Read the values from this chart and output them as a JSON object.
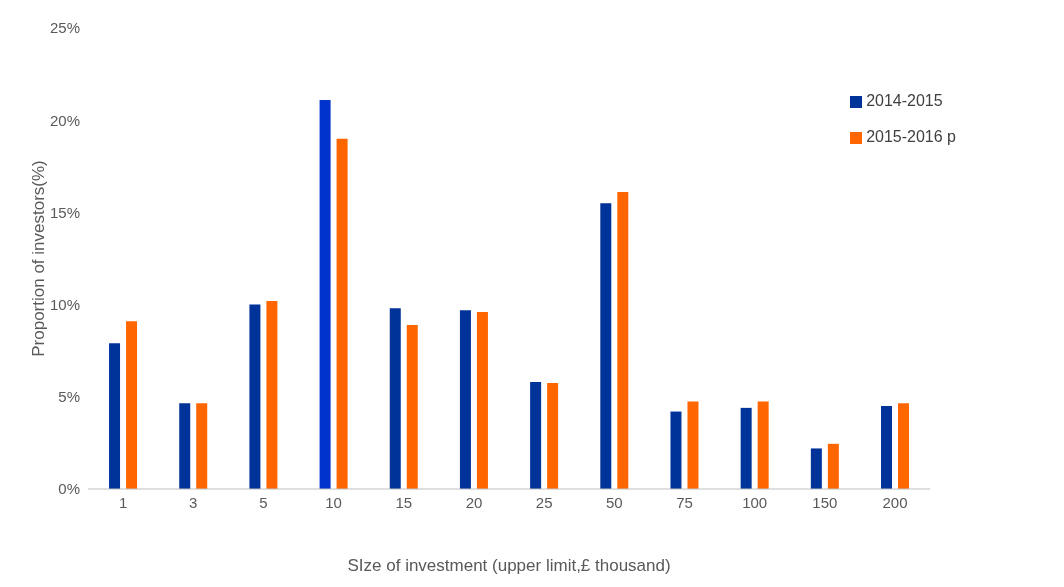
{
  "chart_data": {
    "type": "bar",
    "xlabel": "SIze of investment (upper limit,£ thousand)",
    "ylabel": "Proportion of investors(%)",
    "categories": [
      "1",
      "3",
      "5",
      "10",
      "15",
      "20",
      "25",
      "50",
      "75",
      "100",
      "150",
      "200"
    ],
    "series": [
      {
        "name": "2014-2015",
        "color": "#003399",
        "colors": [
          "#003399",
          "#003399",
          "#003399",
          "#0033cc",
          "#003399",
          "#003399",
          "#003399",
          "#003399",
          "#003399",
          "#003399",
          "#003399",
          "#003399"
        ],
        "values": [
          7.9,
          4.65,
          10.0,
          21.1,
          9.8,
          9.7,
          5.8,
          15.5,
          4.2,
          4.4,
          2.2,
          4.5
        ]
      },
      {
        "name": "2015-2016 p",
        "color": "#ff6600",
        "values": [
          9.1,
          4.65,
          10.2,
          19.0,
          8.9,
          9.6,
          5.75,
          16.1,
          4.75,
          4.75,
          2.45,
          4.65
        ]
      }
    ],
    "ylim": [
      0,
      25
    ],
    "yticks": [
      {
        "value": 0,
        "label": "0%"
      },
      {
        "value": 5,
        "label": "5%"
      },
      {
        "value": 10,
        "label": "10%"
      },
      {
        "value": 15,
        "label": "15%"
      },
      {
        "value": 20,
        "label": "20%"
      },
      {
        "value": 25,
        "label": "25%"
      }
    ],
    "grid": false,
    "legend": "top right"
  }
}
